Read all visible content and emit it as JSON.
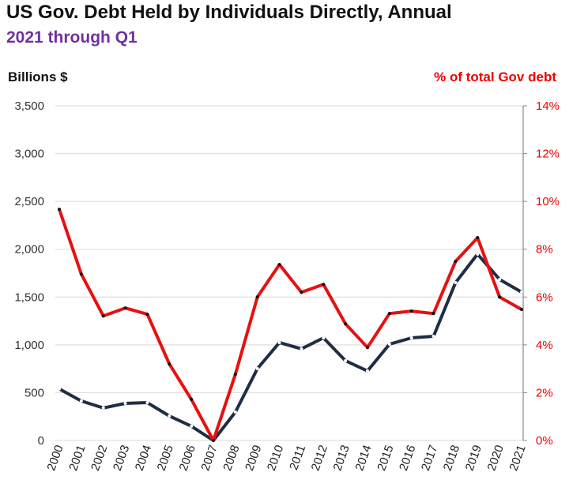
{
  "chart_data": {
    "type": "line",
    "title": "US Gov. Debt Held by Individuals Directly, Annual",
    "subtitle": "2021 through Q1",
    "ylabel": "Billions  $",
    "y2label": "% of total Gov debt",
    "ylim": [
      0,
      3500
    ],
    "y2lim": [
      0,
      14
    ],
    "yticks": [
      "0",
      "500",
      "1,000",
      "1,500",
      "2,000",
      "2,500",
      "3,000",
      "3,500"
    ],
    "y2ticks": [
      "0%",
      "2%",
      "4%",
      "6%",
      "8%",
      "10%",
      "12%",
      "14%"
    ],
    "grid": true,
    "categories": [
      "2000",
      "2001",
      "2002",
      "2003",
      "2004",
      "2005",
      "2006",
      "2007",
      "2008",
      "2009",
      "2010",
      "2011",
      "2012",
      "2013",
      "2014",
      "2015",
      "2016",
      "2017",
      "2018",
      "2019",
      "2020",
      "2021"
    ],
    "series": [
      {
        "name": "Billions $",
        "axis": "left",
        "color": "#1f2d45",
        "values": [
          540,
          413,
          340,
          388,
          396,
          256,
          149,
          0,
          297,
          751,
          1024,
          958,
          1073,
          834,
          727,
          1007,
          1073,
          1090,
          1651,
          1949,
          1684,
          1552
        ]
      },
      {
        "name": "% of total Gov debt",
        "axis": "right",
        "color": "#e81010",
        "values": [
          9.67,
          6.96,
          5.21,
          5.54,
          5.28,
          3.2,
          1.72,
          0,
          2.77,
          6.0,
          7.36,
          6.2,
          6.53,
          4.88,
          3.89,
          5.31,
          5.41,
          5.31,
          7.49,
          8.48,
          6.0,
          5.48
        ]
      }
    ]
  }
}
